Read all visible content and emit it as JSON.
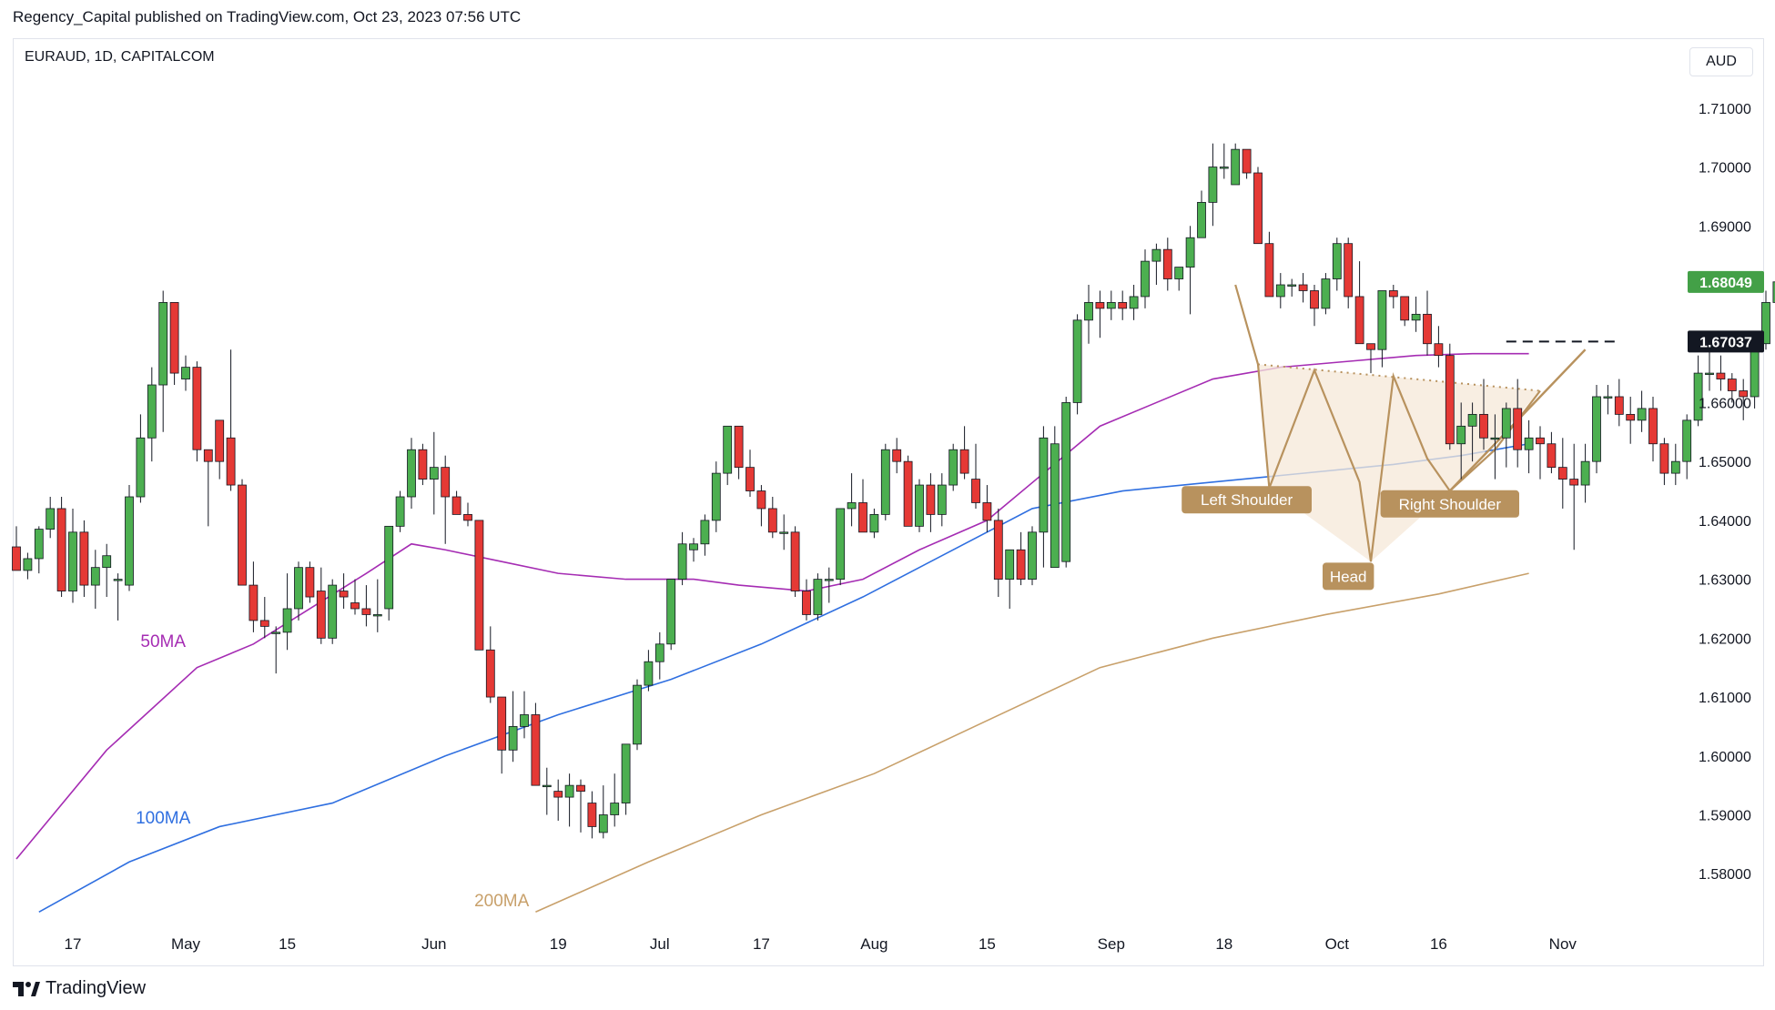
{
  "header": {
    "published": "Regency_Capital published on TradingView.com, Oct 23, 2023 07:56 UTC"
  },
  "symbol_info": "EURAUD, 1D, CAPITALCOM",
  "currency_button": "AUD",
  "footer": {
    "brand": "TradingView"
  },
  "colors": {
    "up": "#4caf50",
    "down": "#e53935",
    "wick": "#131722",
    "ma50": "#a52cb3",
    "ma100": "#2f6fe0",
    "ma200": "#c8a06a",
    "pattern": "#b8925e",
    "pattern_fill": "#f6e8d8",
    "price_label": "#43a047"
  },
  "chart_data": {
    "type": "candlestick",
    "symbol": "EURAUD",
    "interval": "1D",
    "exchange": "CAPITALCOM",
    "currency": "AUD",
    "ylim": [
      1.572,
      1.716
    ],
    "y_ticks": [
      1.71,
      1.7,
      1.69,
      1.68,
      1.67,
      1.66,
      1.65,
      1.64,
      1.63,
      1.62,
      1.61,
      1.6,
      1.59,
      1.58
    ],
    "y_tick_labels": [
      "1.71000",
      "1.70000",
      "1.69000",
      "1.68000",
      "1.67000",
      "1.66000",
      "1.65000",
      "1.64000",
      "1.63000",
      "1.62000",
      "1.61000",
      "1.60000",
      "1.59000",
      "1.58000"
    ],
    "x_tick_labels": [
      {
        "label": "17",
        "index": 5
      },
      {
        "label": "May",
        "index": 15
      },
      {
        "label": "15",
        "index": 24
      },
      {
        "label": "Jun",
        "index": 37
      },
      {
        "label": "19",
        "index": 48
      },
      {
        "label": "Jul",
        "index": 57
      },
      {
        "label": "17",
        "index": 66
      },
      {
        "label": "Aug",
        "index": 76
      },
      {
        "label": "15",
        "index": 86
      },
      {
        "label": "Sep",
        "index": 97
      },
      {
        "label": "18",
        "index": 107
      },
      {
        "label": "Oct",
        "index": 117
      },
      {
        "label": "16",
        "index": 126
      },
      {
        "label": "Nov",
        "index": 137
      }
    ],
    "candles": [
      [
        1.6355,
        1.639,
        1.632,
        1.6315
      ],
      [
        1.6315,
        1.6345,
        1.63,
        1.6335
      ],
      [
        1.6335,
        1.639,
        1.631,
        1.6385
      ],
      [
        1.6385,
        1.644,
        1.637,
        1.642
      ],
      [
        1.642,
        1.644,
        1.627,
        1.628
      ],
      [
        1.628,
        1.642,
        1.626,
        1.638
      ],
      [
        1.638,
        1.64,
        1.627,
        1.629
      ],
      [
        1.629,
        1.635,
        1.625,
        1.632
      ],
      [
        1.632,
        1.636,
        1.627,
        1.634
      ],
      [
        1.63,
        1.631,
        1.623,
        1.63
      ],
      [
        1.629,
        1.646,
        1.628,
        1.644
      ],
      [
        1.644,
        1.658,
        1.643,
        1.654
      ],
      [
        1.654,
        1.666,
        1.65,
        1.663
      ],
      [
        1.663,
        1.679,
        1.655,
        1.677
      ],
      [
        1.677,
        1.677,
        1.663,
        1.665
      ],
      [
        1.664,
        1.668,
        1.662,
        1.666
      ],
      [
        1.666,
        1.667,
        1.65,
        1.652
      ],
      [
        1.652,
        1.652,
        1.639,
        1.65
      ],
      [
        1.657,
        1.657,
        1.647,
        1.65
      ],
      [
        1.654,
        1.669,
        1.645,
        1.646
      ],
      [
        1.646,
        1.647,
        1.629,
        1.629
      ],
      [
        1.629,
        1.633,
        1.621,
        1.623
      ],
      [
        1.623,
        1.627,
        1.62,
        1.622
      ],
      [
        1.621,
        1.622,
        1.614,
        1.621
      ],
      [
        1.621,
        1.631,
        1.618,
        1.625
      ],
      [
        1.625,
        1.633,
        1.623,
        1.632
      ],
      [
        1.632,
        1.633,
        1.626,
        1.627
      ],
      [
        1.628,
        1.632,
        1.619,
        1.62
      ],
      [
        1.62,
        1.63,
        1.619,
        1.629
      ],
      [
        1.628,
        1.631,
        1.625,
        1.627
      ],
      [
        1.626,
        1.63,
        1.624,
        1.625
      ],
      [
        1.625,
        1.629,
        1.622,
        1.624
      ],
      [
        1.624,
        1.63,
        1.621,
        1.624
      ],
      [
        1.625,
        1.639,
        1.623,
        1.639
      ],
      [
        1.639,
        1.645,
        1.638,
        1.644
      ],
      [
        1.644,
        1.654,
        1.642,
        1.652
      ],
      [
        1.652,
        1.653,
        1.646,
        1.647
      ],
      [
        1.647,
        1.655,
        1.641,
        1.649
      ],
      [
        1.649,
        1.651,
        1.636,
        1.644
      ],
      [
        1.644,
        1.645,
        1.641,
        1.641
      ],
      [
        1.641,
        1.643,
        1.639,
        1.64
      ],
      [
        1.64,
        1.64,
        1.618,
        1.618
      ],
      [
        1.618,
        1.622,
        1.609,
        1.61
      ],
      [
        1.61,
        1.61,
        1.597,
        1.601
      ],
      [
        1.601,
        1.611,
        1.599,
        1.605
      ],
      [
        1.605,
        1.611,
        1.603,
        1.607
      ],
      [
        1.607,
        1.609,
        1.595,
        1.595
      ],
      [
        1.595,
        1.598,
        1.59,
        1.595
      ],
      [
        1.594,
        1.596,
        1.589,
        1.593
      ],
      [
        1.593,
        1.597,
        1.588,
        1.595
      ],
      [
        1.595,
        1.596,
        1.587,
        1.594
      ],
      [
        1.592,
        1.594,
        1.586,
        1.588
      ],
      [
        1.587,
        1.595,
        1.586,
        1.59
      ],
      [
        1.59,
        1.597,
        1.588,
        1.592
      ],
      [
        1.592,
        1.602,
        1.59,
        1.602
      ],
      [
        1.602,
        1.613,
        1.601,
        1.612
      ],
      [
        1.612,
        1.618,
        1.611,
        1.616
      ],
      [
        1.616,
        1.621,
        1.613,
        1.619
      ],
      [
        1.619,
        1.63,
        1.618,
        1.63
      ],
      [
        1.63,
        1.638,
        1.629,
        1.636
      ],
      [
        1.635,
        1.637,
        1.633,
        1.636
      ],
      [
        1.636,
        1.641,
        1.634,
        1.64
      ],
      [
        1.64,
        1.65,
        1.638,
        1.648
      ],
      [
        1.648,
        1.655,
        1.646,
        1.656
      ],
      [
        1.656,
        1.656,
        1.647,
        1.649
      ],
      [
        1.649,
        1.652,
        1.644,
        1.645
      ],
      [
        1.645,
        1.646,
        1.639,
        1.642
      ],
      [
        1.642,
        1.644,
        1.637,
        1.638
      ],
      [
        1.638,
        1.641,
        1.635,
        1.638
      ],
      [
        1.638,
        1.639,
        1.627,
        1.628
      ],
      [
        1.628,
        1.63,
        1.623,
        1.624
      ],
      [
        1.624,
        1.631,
        1.623,
        1.63
      ],
      [
        1.63,
        1.632,
        1.626,
        1.63
      ],
      [
        1.63,
        1.641,
        1.629,
        1.642
      ],
      [
        1.642,
        1.648,
        1.639,
        1.643
      ],
      [
        1.643,
        1.647,
        1.638,
        1.638
      ],
      [
        1.638,
        1.642,
        1.637,
        1.641
      ],
      [
        1.641,
        1.653,
        1.64,
        1.652
      ],
      [
        1.652,
        1.654,
        1.648,
        1.65
      ],
      [
        1.65,
        1.651,
        1.639,
        1.639
      ],
      [
        1.639,
        1.647,
        1.638,
        1.646
      ],
      [
        1.646,
        1.648,
        1.638,
        1.641
      ],
      [
        1.641,
        1.648,
        1.639,
        1.646
      ],
      [
        1.646,
        1.653,
        1.645,
        1.652
      ],
      [
        1.652,
        1.656,
        1.647,
        1.648
      ],
      [
        1.647,
        1.653,
        1.642,
        1.643
      ],
      [
        1.643,
        1.646,
        1.638,
        1.64
      ],
      [
        1.64,
        1.642,
        1.627,
        1.63
      ],
      [
        1.63,
        1.635,
        1.625,
        1.635
      ],
      [
        1.635,
        1.638,
        1.629,
        1.63
      ],
      [
        1.63,
        1.639,
        1.629,
        1.638
      ],
      [
        1.638,
        1.656,
        1.632,
        1.654
      ],
      [
        1.632,
        1.656,
        1.632,
        1.653
      ],
      [
        1.633,
        1.661,
        1.632,
        1.66
      ],
      [
        1.66,
        1.675,
        1.658,
        1.674
      ],
      [
        1.674,
        1.68,
        1.67,
        1.677
      ],
      [
        1.677,
        1.679,
        1.671,
        1.676
      ],
      [
        1.676,
        1.679,
        1.674,
        1.677
      ],
      [
        1.677,
        1.679,
        1.674,
        1.676
      ],
      [
        1.676,
        1.68,
        1.674,
        1.678
      ],
      [
        1.678,
        1.686,
        1.676,
        1.684
      ],
      [
        1.684,
        1.687,
        1.68,
        1.686
      ],
      [
        1.686,
        1.688,
        1.679,
        1.681
      ],
      [
        1.681,
        1.683,
        1.679,
        1.683
      ],
      [
        1.683,
        1.69,
        1.675,
        1.688
      ],
      [
        1.688,
        1.696,
        1.688,
        1.694
      ],
      [
        1.694,
        1.704,
        1.69,
        1.7
      ],
      [
        1.7,
        1.704,
        1.698,
        1.7
      ],
      [
        1.697,
        1.704,
        1.698,
        1.703
      ],
      [
        1.703,
        1.703,
        1.698,
        1.699
      ],
      [
        1.699,
        1.7,
        1.687,
        1.687
      ],
      [
        1.687,
        1.689,
        1.678,
        1.678
      ],
      [
        1.678,
        1.682,
        1.676,
        1.68
      ],
      [
        1.68,
        1.681,
        1.678,
        1.68
      ],
      [
        1.68,
        1.682,
        1.677,
        1.679
      ],
      [
        1.679,
        1.68,
        1.673,
        1.676
      ],
      [
        1.676,
        1.682,
        1.675,
        1.681
      ],
      [
        1.681,
        1.688,
        1.679,
        1.687
      ],
      [
        1.687,
        1.688,
        1.676,
        1.678
      ],
      [
        1.678,
        1.684,
        1.67,
        1.67
      ],
      [
        1.67,
        1.67,
        1.665,
        1.669
      ],
      [
        1.669,
        1.679,
        1.666,
        1.679
      ],
      [
        1.679,
        1.68,
        1.676,
        1.678
      ],
      [
        1.678,
        1.677,
        1.673,
        1.674
      ],
      [
        1.674,
        1.678,
        1.672,
        1.675
      ],
      [
        1.675,
        1.679,
        1.668,
        1.67
      ],
      [
        1.67,
        1.673,
        1.666,
        1.668
      ],
      [
        1.668,
        1.67,
        1.652,
        1.653
      ],
      [
        1.653,
        1.66,
        1.647,
        1.656
      ],
      [
        1.656,
        1.66,
        1.65,
        1.658
      ],
      [
        1.658,
        1.664,
        1.652,
        1.654
      ],
      [
        1.654,
        1.658,
        1.647,
        1.654
      ],
      [
        1.654,
        1.66,
        1.649,
        1.659
      ],
      [
        1.659,
        1.664,
        1.649,
        1.652
      ],
      [
        1.652,
        1.657,
        1.648,
        1.654
      ],
      [
        1.654,
        1.656,
        1.647,
        1.653
      ],
      [
        1.653,
        1.655,
        1.648,
        1.649
      ],
      [
        1.649,
        1.654,
        1.642,
        1.647
      ],
      [
        1.647,
        1.653,
        1.635,
        1.646
      ],
      [
        1.646,
        1.653,
        1.643,
        1.65
      ],
      [
        1.65,
        1.663,
        1.648,
        1.661
      ],
      [
        1.661,
        1.663,
        1.658,
        1.661
      ],
      [
        1.661,
        1.664,
        1.656,
        1.658
      ],
      [
        1.658,
        1.661,
        1.653,
        1.657
      ],
      [
        1.657,
        1.662,
        1.655,
        1.659
      ],
      [
        1.659,
        1.661,
        1.65,
        1.653
      ],
      [
        1.653,
        1.654,
        1.646,
        1.648
      ],
      [
        1.648,
        1.653,
        1.646,
        1.65
      ],
      [
        1.65,
        1.658,
        1.647,
        1.657
      ],
      [
        1.657,
        1.668,
        1.656,
        1.665
      ],
      [
        1.665,
        1.669,
        1.662,
        1.665
      ],
      [
        1.665,
        1.668,
        1.662,
        1.664
      ],
      [
        1.664,
        1.665,
        1.66,
        1.662
      ],
      [
        1.662,
        1.664,
        1.657,
        1.661
      ],
      [
        1.661,
        1.672,
        1.659,
        1.67
      ],
      [
        1.67,
        1.679,
        1.669,
        1.677
      ],
      [
        1.677,
        1.681,
        1.674,
        1.6805
      ]
    ],
    "moving_averages": [
      {
        "name": "50MA",
        "values": [
          [
            0,
            1.5825
          ],
          [
            8,
            1.601
          ],
          [
            16,
            1.615
          ],
          [
            21,
            1.619
          ],
          [
            26,
            1.625
          ],
          [
            31,
            1.631
          ],
          [
            35,
            1.636
          ],
          [
            38,
            1.635
          ],
          [
            43,
            1.633
          ],
          [
            48,
            1.631
          ],
          [
            54,
            1.63
          ],
          [
            60,
            1.63
          ],
          [
            64,
            1.629
          ],
          [
            70,
            1.628
          ],
          [
            75,
            1.63
          ],
          [
            80,
            1.635
          ],
          [
            86,
            1.64
          ],
          [
            91,
            1.648
          ],
          [
            96,
            1.656
          ],
          [
            101,
            1.66
          ],
          [
            106,
            1.664
          ],
          [
            112,
            1.666
          ],
          [
            118,
            1.667
          ],
          [
            124,
            1.668
          ],
          [
            129,
            1.6683
          ],
          [
            134,
            1.6683
          ]
        ]
      },
      {
        "name": "100MA",
        "values": [
          [
            2,
            1.5735
          ],
          [
            10,
            1.582
          ],
          [
            18,
            1.588
          ],
          [
            28,
            1.592
          ],
          [
            38,
            1.6
          ],
          [
            48,
            1.607
          ],
          [
            58,
            1.613
          ],
          [
            66,
            1.619
          ],
          [
            75,
            1.627
          ],
          [
            82,
            1.634
          ],
          [
            90,
            1.642
          ],
          [
            98,
            1.645
          ],
          [
            106,
            1.6465
          ],
          [
            114,
            1.648
          ],
          [
            122,
            1.6495
          ],
          [
            128,
            1.651
          ],
          [
            134,
            1.653
          ]
        ]
      },
      {
        "name": "200MA",
        "values": [
          [
            46,
            1.5735
          ],
          [
            56,
            1.582
          ],
          [
            66,
            1.59
          ],
          [
            76,
            1.597
          ],
          [
            86,
            1.606
          ],
          [
            96,
            1.615
          ],
          [
            106,
            1.62
          ],
          [
            116,
            1.624
          ],
          [
            126,
            1.6275
          ],
          [
            134,
            1.631
          ]
        ]
      }
    ],
    "price_labels": [
      {
        "text": "1.68049",
        "value": 1.68049,
        "kind": "last"
      },
      {
        "text": "1.67037",
        "value": 1.67037,
        "kind": "level"
      }
    ],
    "annotations": [
      {
        "text": "Left Shoulder",
        "index": 109,
        "value": 1.6435
      },
      {
        "text": "Head",
        "index": 118,
        "value": 1.6305
      },
      {
        "text": "Right Shoulder",
        "index": 127,
        "value": 1.6428
      },
      {
        "text": "50MA",
        "index": 13,
        "value": 1.6185
      },
      {
        "text": "100MA",
        "index": 13,
        "value": 1.5885
      },
      {
        "text": "200MA",
        "index": 43,
        "value": 1.5745
      }
    ],
    "pattern": {
      "zigzag": [
        [
          108,
          1.68
        ],
        [
          110,
          1.6665
        ],
        [
          111,
          1.6455
        ],
        [
          115,
          1.6655
        ],
        [
          119,
          1.6465
        ],
        [
          120,
          1.633
        ],
        [
          122,
          1.6645
        ],
        [
          125,
          1.6505
        ],
        [
          127,
          1.645
        ],
        [
          131,
          1.652
        ],
        [
          135,
          1.662
        ]
      ],
      "neckline": [
        [
          110,
          1.6665
        ],
        [
          135,
          1.662
        ]
      ],
      "trendline": [
        [
          127,
          1.645
        ],
        [
          139,
          1.669
        ]
      ],
      "breakout_level": [
        [
          132,
          1.67037
        ],
        [
          142,
          1.67037
        ]
      ]
    }
  }
}
